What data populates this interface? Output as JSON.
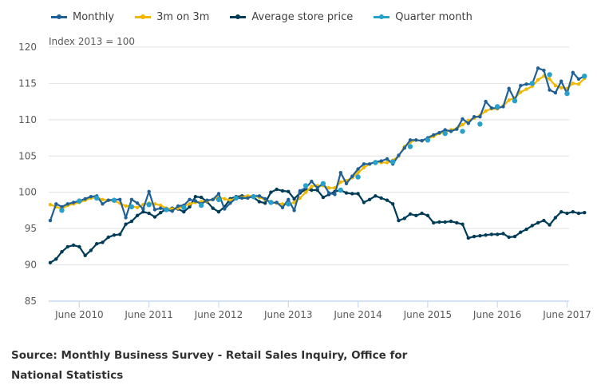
{
  "chart_data": {
    "type": "line",
    "title": "",
    "ylabel": "Index 2013 = 100",
    "xlabel": "",
    "ylim": [
      85,
      120
    ],
    "yticks": [
      85,
      90,
      95,
      100,
      105,
      110,
      115,
      120
    ],
    "x_start": "2010-01",
    "x_end": "2017-06",
    "xtick_labels": [
      "June 2010",
      "June 2011",
      "June 2012",
      "June 2013",
      "June 2014",
      "June 2015",
      "June 2016",
      "June 2017"
    ],
    "xtick_month_index": [
      5,
      17,
      29,
      41,
      53,
      65,
      77,
      89
    ],
    "grid": true,
    "legend_position": "top-left",
    "series": [
      {
        "name": "Monthly",
        "color": "#206095",
        "values": [
          96.1,
          98.4,
          98.0,
          98.4,
          98.6,
          98.8,
          99.1,
          99.4,
          99.5,
          98.4,
          98.9,
          99.0,
          99.0,
          96.5,
          99.0,
          98.5,
          97.7,
          100.1,
          97.6,
          97.8,
          97.6,
          97.4,
          98.1,
          98.2,
          99.0,
          98.8,
          98.4,
          98.9,
          99.0,
          99.8,
          97.7,
          98.5,
          99.2,
          99.2,
          99.2,
          99.5,
          99.5,
          99.1,
          98.5,
          98.6,
          97.9,
          99.0,
          97.5,
          100.2,
          100.6,
          101.5,
          100.6,
          101.2,
          99.9,
          99.7,
          102.7,
          101.2,
          102.2,
          103.2,
          103.9,
          103.9,
          104.2,
          104.3,
          104.6,
          103.9,
          105.1,
          106.1,
          107.2,
          107.2,
          107.1,
          107.5,
          107.9,
          108.2,
          108.6,
          108.4,
          108.7,
          110.1,
          109.5,
          110.4,
          110.4,
          112.5,
          111.6,
          111.6,
          111.8,
          114.3,
          112.7,
          114.7,
          114.9,
          114.9,
          117.1,
          116.8,
          114.1,
          113.7,
          115.3,
          113.6,
          116.5,
          115.6,
          116.0
        ]
      },
      {
        "name": "3m on 3m",
        "color": "#F0B800",
        "values": [
          98.3,
          98.0,
          97.7,
          98.2,
          98.4,
          98.6,
          98.9,
          99.2,
          99.3,
          99.0,
          98.9,
          98.8,
          98.5,
          98.1,
          98.1,
          97.9,
          98.3,
          98.5,
          98.4,
          98.2,
          97.8,
          97.7,
          97.8,
          98.1,
          98.4,
          98.6,
          98.7,
          98.8,
          99.0,
          99.3,
          99.1,
          98.9,
          99.2,
          99.3,
          99.5,
          99.5,
          99.3,
          99.0,
          98.7,
          98.5,
          98.4,
          98.3,
          98.6,
          99.2,
          100.0,
          100.8,
          100.9,
          100.9,
          100.6,
          100.6,
          101.4,
          101.6,
          102.0,
          102.7,
          103.4,
          103.9,
          104.2,
          104.1,
          104.1,
          104.4,
          105.0,
          106.3,
          106.9,
          107.2,
          107.1,
          107.4,
          107.7,
          108.1,
          108.3,
          108.6,
          108.8,
          109.3,
          109.9,
          110.2,
          110.6,
          111.2,
          111.5,
          111.5,
          111.9,
          112.7,
          113.0,
          113.8,
          114.2,
          114.6,
          115.5,
          116.0,
          115.6,
          114.7,
          114.4,
          114.3,
          115.0,
          114.9,
          115.7
        ]
      },
      {
        "name": "Average store price",
        "color": "#003C57",
        "values": [
          90.3,
          90.8,
          91.8,
          92.5,
          92.7,
          92.5,
          91.3,
          92.0,
          92.9,
          93.1,
          93.8,
          94.1,
          94.2,
          95.6,
          96.0,
          96.8,
          97.3,
          97.1,
          96.6,
          97.2,
          97.7,
          97.8,
          97.7,
          97.3,
          98.0,
          99.4,
          99.3,
          98.7,
          97.8,
          97.3,
          98.0,
          99.1,
          99.4,
          99.5,
          99.4,
          99.3,
          98.7,
          98.5,
          100.0,
          100.4,
          100.2,
          100.1,
          99.1,
          99.9,
          100.4,
          100.3,
          100.3,
          99.3,
          99.7,
          100.1,
          100.3,
          99.9,
          99.8,
          99.8,
          98.6,
          99.0,
          99.5,
          99.2,
          98.9,
          98.4,
          96.1,
          96.4,
          97.0,
          96.8,
          97.1,
          96.8,
          95.8,
          95.9,
          95.9,
          96.0,
          95.8,
          95.6,
          93.7,
          93.9,
          94.0,
          94.1,
          94.2,
          94.2,
          94.3,
          93.8,
          93.9,
          94.5,
          94.9,
          95.4,
          95.8,
          96.1,
          95.5,
          96.5,
          97.3,
          97.1,
          97.3,
          97.1,
          97.2
        ]
      },
      {
        "name": "Quarter month",
        "color": "#27A0CC",
        "month_indices": [
          2,
          5,
          8,
          11,
          14,
          17,
          20,
          23,
          26,
          29,
          32,
          35,
          38,
          41,
          44,
          47,
          50,
          53,
          56,
          59,
          62,
          65,
          68,
          71,
          74,
          77,
          80,
          83,
          86,
          89,
          92
        ],
        "values": [
          97.5,
          98.8,
          99.2,
          98.9,
          98.0,
          98.3,
          97.6,
          97.9,
          98.2,
          99.0,
          99.2,
          99.4,
          98.6,
          98.4,
          100.9,
          101.2,
          100.3,
          102.1,
          104.1,
          104.2,
          106.3,
          107.2,
          108.1,
          108.4,
          109.4,
          111.8,
          112.6,
          115.0,
          116.2,
          113.6,
          116.0
        ]
      }
    ]
  },
  "source_text": "Source: Monthly Business Survey - Retail Sales Inquiry, Office for National Statistics"
}
